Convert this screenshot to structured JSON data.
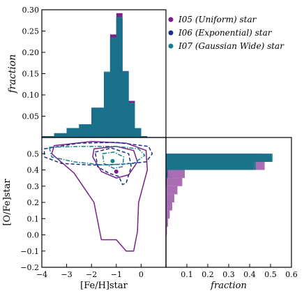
{
  "chart_data": [
    {
      "id": "top",
      "type": "histogram",
      "ylabel": "fraction",
      "xlim": [
        -4,
        1
      ],
      "ylim": [
        0,
        0.3
      ],
      "yticks": [
        "",
        "0.05",
        "0.10",
        "0.15",
        "0.20",
        "0.25",
        "0.30"
      ],
      "yticks_values": [
        0,
        0.05,
        0.1,
        0.15,
        0.2,
        0.25,
        0.3
      ],
      "series": [
        {
          "name": "I05 (Uniform) star",
          "color": "#7b1f8c",
          "edges": [
            -4.0,
            -3.5,
            -3.0,
            -2.5,
            -2.0,
            -1.5,
            -1.25,
            -1.0,
            -0.75,
            -0.5,
            -0.25,
            0.0,
            0.25,
            0.5,
            1.0
          ],
          "values": [
            0.003,
            0.01,
            0.022,
            0.03,
            0.068,
            0.15,
            0.242,
            0.292,
            0.156,
            0.086,
            0.022,
            0.003,
            0,
            0
          ]
        },
        {
          "name": "I06 (Exponential) star",
          "color": "#1b2f86",
          "edges": [
            -4.0,
            -3.5,
            -3.0,
            -2.5,
            -2.0,
            -1.5,
            -1.25,
            -1.0,
            -0.75,
            -0.5,
            -0.25,
            0.0,
            0.25,
            0.5,
            1.0
          ],
          "values": [
            0.003,
            0.01,
            0.022,
            0.031,
            0.07,
            0.153,
            0.232,
            0.28,
            0.153,
            0.082,
            0.021,
            0.003,
            0,
            0
          ]
        },
        {
          "name": "I07 (Gaussian Wide) star",
          "color": "#1a7f8c",
          "edges": [
            -4.0,
            -3.5,
            -3.0,
            -2.5,
            -2.0,
            -1.5,
            -1.25,
            -1.0,
            -0.75,
            -0.5,
            -0.25,
            0.0,
            0.25,
            0.5,
            1.0
          ],
          "values": [
            0.003,
            0.01,
            0.022,
            0.031,
            0.07,
            0.155,
            0.235,
            0.283,
            0.156,
            0.082,
            0.022,
            0.003,
            0,
            0
          ]
        }
      ]
    },
    {
      "id": "contour",
      "type": "contour",
      "xlabel": "[Fe/H]star",
      "ylabel": "[O/Fe]star",
      "xlim": [
        -4,
        1
      ],
      "ylim": [
        -0.2,
        0.6
      ],
      "xticks": [
        "−4",
        "−3",
        "−2",
        "−1",
        "0"
      ],
      "xticks_values": [
        -4,
        -3,
        -2,
        -1,
        0
      ],
      "yticks": [
        "−0.2",
        "−0.1",
        "0.0",
        "0.1",
        "0.2",
        "0.3",
        "0.4",
        "0.5"
      ],
      "yticks_values": [
        -0.2,
        -0.1,
        0.0,
        0.1,
        0.2,
        0.3,
        0.4,
        0.5
      ],
      "centers": [
        {
          "series": "I05 (Uniform) star",
          "x": -1.0,
          "y": 0.39
        },
        {
          "series": "I07 (Gaussian Wide) star",
          "x": -1.15,
          "y": 0.455
        }
      ],
      "contours": [
        {
          "series": "I05 (Uniform) star",
          "style": "solid",
          "points": [
            [
              -3.5,
              0.55
            ],
            [
              -2.0,
              0.575
            ],
            [
              -0.6,
              0.565
            ],
            [
              0.2,
              0.52
            ],
            [
              0.25,
              0.4
            ],
            [
              -0.1,
              0.2
            ],
            [
              -0.15,
              0.02
            ],
            [
              -0.3,
              -0.1
            ],
            [
              -0.6,
              -0.1
            ],
            [
              -1.0,
              -0.03
            ],
            [
              -1.6,
              -0.03
            ],
            [
              -1.9,
              0.2
            ],
            [
              -2.7,
              0.38
            ],
            [
              -3.6,
              0.5
            ]
          ]
        },
        {
          "series": "I05 (Uniform) star",
          "style": "solid",
          "points": [
            [
              -1.9,
              0.53
            ],
            [
              -1.0,
              0.545
            ],
            [
              -0.3,
              0.52
            ],
            [
              -0.15,
              0.45
            ],
            [
              -0.5,
              0.37
            ],
            [
              -1.0,
              0.35
            ],
            [
              -1.6,
              0.39
            ],
            [
              -1.95,
              0.48
            ]
          ]
        },
        {
          "series": "I06 (Exponential) star",
          "style": "dashed",
          "points": [
            [
              -3.9,
              0.53
            ],
            [
              -2.5,
              0.565
            ],
            [
              -1.0,
              0.57
            ],
            [
              0.3,
              0.545
            ],
            [
              0.45,
              0.5
            ],
            [
              0.2,
              0.45
            ],
            [
              -0.8,
              0.435
            ],
            [
              -2.0,
              0.43
            ],
            [
              -3.2,
              0.44
            ],
            [
              -3.9,
              0.48
            ]
          ]
        },
        {
          "series": "I06 (Exponential) star",
          "style": "dashed",
          "points": [
            [
              -1.85,
              0.51
            ],
            [
              -1.2,
              0.535
            ],
            [
              -0.5,
              0.5
            ],
            [
              -0.4,
              0.42
            ],
            [
              -0.6,
              0.32
            ],
            [
              -0.75,
              0.31
            ],
            [
              -0.9,
              0.36
            ],
            [
              -1.3,
              0.38
            ],
            [
              -1.75,
              0.42
            ]
          ]
        },
        {
          "series": "I07 (Gaussian Wide) star",
          "style": "dashdot",
          "points": [
            [
              -3.7,
              0.54
            ],
            [
              -2.5,
              0.545
            ],
            [
              -1.0,
              0.545
            ],
            [
              -0.1,
              0.53
            ],
            [
              0.15,
              0.49
            ],
            [
              -0.3,
              0.44
            ],
            [
              -1.5,
              0.43
            ],
            [
              -2.7,
              0.45
            ],
            [
              -3.6,
              0.48
            ]
          ]
        },
        {
          "series": "I07 (Gaussian Wide) star",
          "style": "dashdot",
          "points": [
            [
              -1.55,
              0.5
            ],
            [
              -1.1,
              0.51
            ],
            [
              -0.7,
              0.48
            ],
            [
              -0.75,
              0.42
            ],
            [
              -1.1,
              0.41
            ],
            [
              -1.5,
              0.44
            ]
          ]
        }
      ]
    },
    {
      "id": "right",
      "type": "histogram-horizontal",
      "xlabel": "fraction",
      "xlim": [
        0,
        0.6
      ],
      "ylim": [
        -0.2,
        0.6
      ],
      "xticks": [
        "0.1",
        "0.2",
        "0.3",
        "0.4",
        "0.5",
        "0.6"
      ],
      "xticks_values": [
        0.1,
        0.2,
        0.3,
        0.4,
        0.5,
        0.6
      ],
      "series": [
        {
          "name": "I05 (Uniform) star",
          "color": "#7b1f8c",
          "edges": [
            -0.2,
            0.0,
            0.05,
            0.1,
            0.15,
            0.2,
            0.25,
            0.3,
            0.35,
            0.4,
            0.45,
            0.5,
            0.55,
            0.6
          ],
          "values": [
            0.003,
            0.005,
            0.01,
            0.018,
            0.03,
            0.04,
            0.055,
            0.078,
            0.09,
            0.472,
            0.45,
            0,
            0
          ]
        },
        {
          "name": "I06 (Exponential) star",
          "color": "#1b2f86",
          "edges": [
            -0.2,
            0.0,
            0.05,
            0.1,
            0.15,
            0.2,
            0.25,
            0.3,
            0.35,
            0.4,
            0.45,
            0.5,
            0.55,
            0.6
          ],
          "values": [
            0,
            0,
            0,
            0,
            0,
            0,
            0,
            0.003,
            0.008,
            0.42,
            0.505,
            0,
            0
          ]
        },
        {
          "name": "I07 (Gaussian Wide) star",
          "color": "#1a7f8c",
          "edges": [
            -0.2,
            0.0,
            0.05,
            0.1,
            0.15,
            0.2,
            0.25,
            0.3,
            0.35,
            0.4,
            0.45,
            0.5,
            0.55,
            0.6
          ],
          "values": [
            0,
            0,
            0,
            0,
            0,
            0,
            0,
            0.002,
            0.006,
            0.43,
            0.51,
            0,
            0
          ]
        }
      ]
    }
  ],
  "legend": {
    "position": "top-right",
    "items": [
      {
        "label": "I05 (Uniform) star",
        "color": "#7b1f8c"
      },
      {
        "label": "I06 (Exponential) star",
        "color": "#1b2f86"
      },
      {
        "label": "I07 (Gaussian Wide) star",
        "color": "#1a7f8c"
      }
    ]
  }
}
